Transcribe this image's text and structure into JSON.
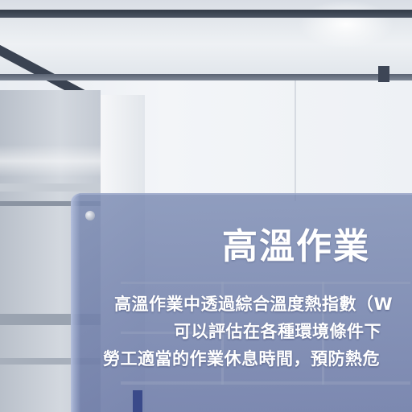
{
  "panel": {
    "title": "高溫作業",
    "lines": [
      "高溫作業中透過綜合溫度熱指數（W",
      "可以評估在各種環境條件下",
      "勞工適當的作業休息時間，預防熱危"
    ]
  },
  "colors": {
    "panel": "#7484b0",
    "text": "#ffffff",
    "beam": "#323b48"
  }
}
